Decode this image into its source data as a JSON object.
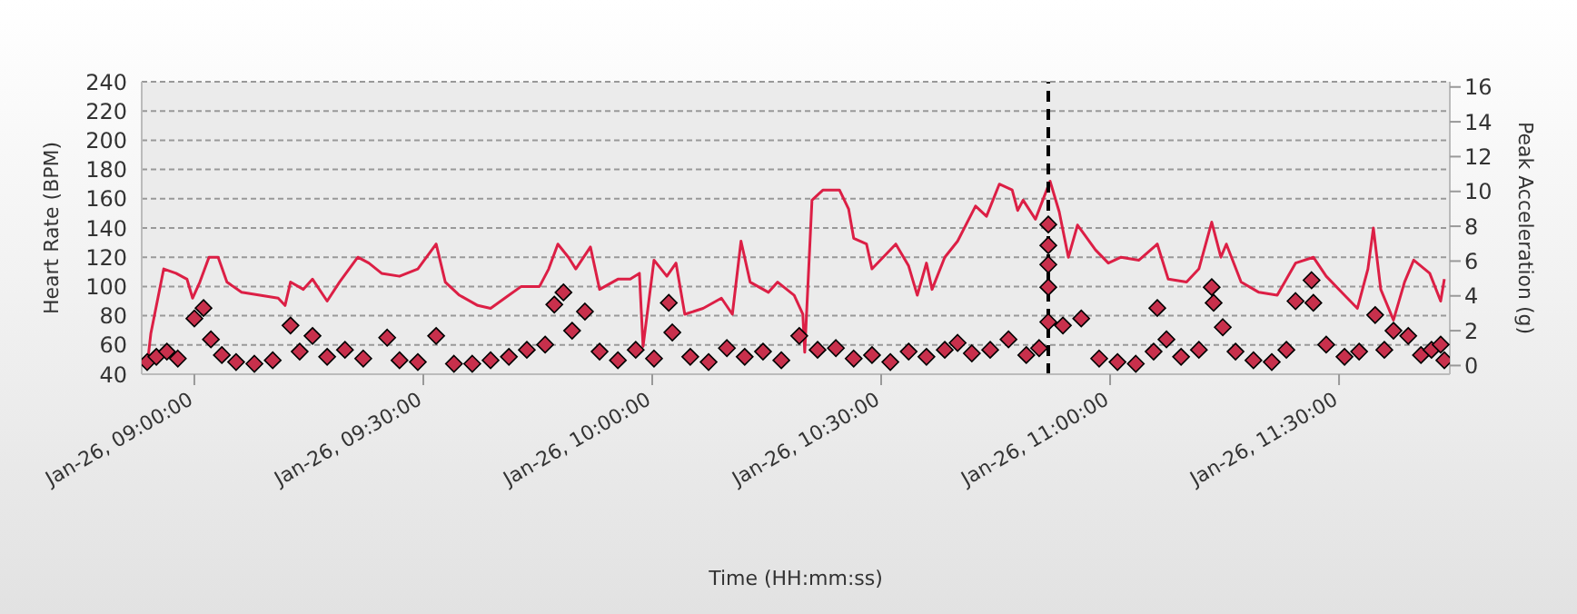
{
  "chart_data": {
    "type": "line",
    "xlabel": "Time (HH:mm:ss)",
    "ylabel": "Heart Rate (BPM)",
    "y2label": "Peak Acceleration (g)",
    "xlim": [
      "--01-26T08:53:06",
      "--01-26T11:44:31"
    ],
    "xticks": [
      {
        "value": "--01-26T09:00",
        "label": "Jan-26, 09:00:00"
      },
      {
        "value": "--01-26T09:30",
        "label": "Jan-26, 09:30:00"
      },
      {
        "value": "--01-26T10:00",
        "label": "Jan-26, 10:00:00"
      },
      {
        "value": "--01-26T10:30",
        "label": "Jan-26, 10:30:00"
      },
      {
        "value": "--01-26T11:00",
        "label": "Jan-26, 11:00:00"
      },
      {
        "value": "--01-26T11:30",
        "label": "Jan-26, 11:30:00"
      }
    ],
    "ylim": [
      40,
      240
    ],
    "yticks": [
      40,
      60,
      80,
      100,
      120,
      140,
      160,
      180,
      200,
      220,
      240
    ],
    "y2lim": [
      -0.5,
      16.3
    ],
    "y2ticks": [
      0,
      2,
      4,
      6,
      8,
      10,
      12,
      14,
      16
    ],
    "grid": "y",
    "legend": false,
    "line_style": "solid",
    "ref_lines": [
      {
        "axis": "x",
        "value": "--01-26T10:51:54",
        "color": "#000000",
        "line_style": "dashed"
      }
    ],
    "series": [
      {
        "color": "#dc1f45",
        "marker": "none",
        "x": [
          "--01-26T08:53:49",
          "--01-26T08:54:18",
          "--01-26T08:55:59",
          "--01-26T08:57:36",
          "--01-26T08:59:02",
          "--01-26T08:59:46",
          "--01-26T09:00:43",
          "--01-26T09:01:55",
          "--01-26T09:03:07",
          "--01-26T09:04:16",
          "--01-26T09:06:11",
          "--01-26T09:08:35",
          "--01-26T09:10:59",
          "--01-26T09:11:53",
          "--01-26T09:12:36",
          "--01-26T09:14:17",
          "--01-26T09:15:29",
          "--01-26T09:17:24",
          "--01-26T09:19:01",
          "--01-26T09:21:25",
          "--01-26T09:22:52",
          "--01-26T09:24:32",
          "--01-26T09:26:53",
          "--01-26T09:29:17",
          "--01-26T09:31:41",
          "--01-26T09:32:53",
          "--01-26T09:34:44",
          "--01-26T09:37:08",
          "--01-26T09:38:49",
          "--01-26T09:41:13",
          "--01-26T09:42:50",
          "--01-26T09:45:14",
          "--01-26T09:46:26",
          "--01-26T09:47:38",
          "--01-26T09:49:01",
          "--01-26T09:49:59",
          "--01-26T09:51:54",
          "--01-26T09:53:06",
          "--01-26T09:55:30",
          "--01-26T09:57:07",
          "--01-26T09:58:19",
          "--01-26T09:58:48",
          "--01-26T10:00:14",
          "--01-26T10:01:55",
          "--01-26T10:03:07",
          "--01-26T10:04:16",
          "--01-26T10:06:40",
          "--01-26T10:09:04",
          "--01-26T10:10:30",
          "--01-26T10:11:38",
          "--01-26T10:12:50",
          "--01-26T10:15:14",
          "--01-26T10:16:26",
          "--01-26T10:18:36",
          "--01-26T10:19:44",
          "--01-26T10:19:59",
          "--01-26T10:20:56",
          "--01-26T10:22:23",
          "--01-26T10:24:32",
          "--01-26T10:25:44",
          "--01-26T10:26:24",
          "--01-26T10:28:05",
          "--01-26T10:28:48",
          "--01-26T10:31:55",
          "--01-26T10:33:36",
          "--01-26T10:34:44",
          "--01-26T10:35:56",
          "--01-26T10:36:40",
          "--01-26T10:38:20",
          "--01-26T10:40:01",
          "--01-26T10:42:22",
          "--01-26T10:43:48",
          "--01-26T10:45:29",
          "--01-26T10:47:10",
          "--01-26T10:47:53",
          "--01-26T10:48:36",
          "--01-26T10:50:13",
          "--01-26T10:52:08",
          "--01-26T10:53:20",
          "--01-26T10:54:32",
          "--01-26T10:55:44",
          "--01-26T10:58:05",
          "--01-26T10:59:46",
          "--01-26T11:01:26",
          "--01-26T11:03:47",
          "--01-26T11:06:11",
          "--01-26T11:07:37",
          "--01-26T11:10:01",
          "--01-26T11:11:38",
          "--01-26T11:13:19",
          "--01-26T11:14:31",
          "--01-26T11:15:14",
          "--01-26T11:17:10",
          "--01-26T11:19:30",
          "--01-26T11:21:54",
          "--01-26T11:24:18",
          "--01-26T11:26:38",
          "--01-26T11:28:19",
          "--01-26T11:30:43",
          "--01-26T11:32:24",
          "--01-26T11:33:47",
          "--01-26T11:34:30",
          "--01-26T11:35:28",
          "--01-26T11:37:08",
          "--01-26T11:38:35",
          "--01-26T11:39:47",
          "--01-26T11:41:53",
          "--01-26T11:43:19",
          "--01-26T11:43:48"
        ],
        "values": [
          46,
          68,
          112,
          109,
          105,
          92,
          103,
          120,
          120,
          103,
          96,
          94,
          92,
          87,
          103,
          98,
          105,
          90,
          103,
          120,
          116,
          109,
          107,
          112,
          129,
          103,
          94,
          87,
          85,
          94,
          100,
          100,
          112,
          129,
          120,
          112,
          127,
          98,
          105,
          105,
          109,
          59,
          118,
          107,
          116,
          81,
          85,
          92,
          81,
          131,
          103,
          96,
          103,
          94,
          81,
          55,
          159,
          166,
          166,
          153,
          133,
          129,
          112,
          129,
          114,
          94,
          116,
          98,
          120,
          131,
          155,
          148,
          170,
          166,
          152,
          159,
          146,
          172,
          151,
          120,
          142,
          125,
          116,
          120,
          118,
          129,
          105,
          103,
          112,
          144,
          120,
          129,
          103,
          96,
          94,
          116,
          120,
          107,
          94,
          85,
          112,
          140,
          98,
          77,
          103,
          118,
          109,
          90,
          105
        ]
      },
      {
        "type": "scatter",
        "color": "#c8304c",
        "marker": "diamond",
        "axis": "y2",
        "x": [
          "--01-26T08:53:49",
          "--01-26T08:55:01",
          "--01-26T08:56:24",
          "--01-26T08:57:50",
          "--01-26T09:00:00",
          "--01-26T09:01:12",
          "--01-26T09:02:10",
          "--01-26T09:03:36",
          "--01-26T09:05:28",
          "--01-26T09:07:52",
          "--01-26T09:10:16",
          "--01-26T09:12:36",
          "--01-26T09:13:48",
          "--01-26T09:15:29",
          "--01-26T09:17:24",
          "--01-26T09:19:44",
          "--01-26T09:22:08",
          "--01-26T09:25:16",
          "--01-26T09:26:53",
          "--01-26T09:29:17",
          "--01-26T09:31:41",
          "--01-26T09:34:01",
          "--01-26T09:36:25",
          "--01-26T09:38:49",
          "--01-26T09:41:13",
          "--01-26T09:43:34",
          "--01-26T09:45:58",
          "--01-26T09:47:10",
          "--01-26T09:48:22",
          "--01-26T09:49:30",
          "--01-26T09:51:11",
          "--01-26T09:53:06",
          "--01-26T09:55:30",
          "--01-26T09:57:50",
          "--01-26T10:00:14",
          "--01-26T10:02:10",
          "--01-26T10:02:38",
          "--01-26T10:04:59",
          "--01-26T10:07:23",
          "--01-26T10:09:47",
          "--01-26T10:12:07",
          "--01-26T10:14:31",
          "--01-26T10:16:55",
          "--01-26T10:19:16",
          "--01-26T10:21:40",
          "--01-26T10:24:04",
          "--01-26T10:26:24",
          "--01-26T10:28:48",
          "--01-26T10:31:12",
          "--01-26T10:33:36",
          "--01-26T10:35:56",
          "--01-26T10:38:20",
          "--01-26T10:40:01",
          "--01-26T10:41:53",
          "--01-26T10:44:17",
          "--01-26T10:46:41",
          "--01-26T10:49:01",
          "--01-26T10:50:42",
          "--01-26T10:51:54",
          "--01-26T10:51:54",
          "--01-26T10:51:54",
          "--01-26T10:51:54",
          "--01-26T10:51:54",
          "--01-26T10:53:49",
          "--01-26T10:56:13",
          "--01-26T10:58:34",
          "--01-26T11:00:58",
          "--01-26T11:03:22",
          "--01-26T11:05:42",
          "--01-26T11:06:11",
          "--01-26T11:07:23",
          "--01-26T11:09:18",
          "--01-26T11:11:38",
          "--01-26T11:13:19",
          "--01-26T11:13:34",
          "--01-26T11:14:46",
          "--01-26T11:16:26",
          "--01-26T11:18:47",
          "--01-26T11:21:11",
          "--01-26T11:23:06",
          "--01-26T11:24:18",
          "--01-26T11:26:24",
          "--01-26T11:26:38",
          "--01-26T11:28:19",
          "--01-26T11:30:43",
          "--01-26T11:32:38",
          "--01-26T11:34:44",
          "--01-26T11:35:56",
          "--01-26T11:37:08",
          "--01-26T11:39:04",
          "--01-26T11:40:44",
          "--01-26T11:42:07",
          "--01-26T11:43:19",
          "--01-26T11:43:48"
        ],
        "values": [
          0.2,
          0.5,
          0.8,
          0.4,
          2.7,
          3.3,
          1.5,
          0.6,
          0.2,
          0.1,
          0.3,
          2.3,
          0.8,
          1.7,
          0.5,
          0.9,
          0.4,
          1.6,
          0.3,
          0.2,
          1.7,
          0.1,
          0.1,
          0.3,
          0.5,
          0.9,
          1.2,
          3.5,
          4.2,
          2.0,
          3.1,
          0.8,
          0.3,
          0.9,
          0.4,
          3.6,
          1.9,
          0.5,
          0.2,
          1.0,
          0.5,
          0.8,
          0.3,
          1.7,
          0.9,
          1.0,
          0.4,
          0.6,
          0.2,
          0.8,
          0.5,
          0.9,
          1.3,
          0.7,
          0.9,
          1.5,
          0.6,
          1.0,
          8.1,
          6.9,
          5.8,
          4.5,
          2.5,
          2.3,
          2.7,
          0.4,
          0.2,
          0.1,
          0.8,
          3.3,
          1.5,
          0.5,
          0.9,
          4.5,
          3.6,
          2.2,
          0.8,
          0.3,
          0.2,
          0.9,
          3.7,
          4.9,
          3.6,
          1.2,
          0.5,
          0.8,
          2.9,
          0.9,
          2.0,
          1.7,
          0.6,
          0.9,
          1.2,
          0.3
        ]
      }
    ]
  }
}
